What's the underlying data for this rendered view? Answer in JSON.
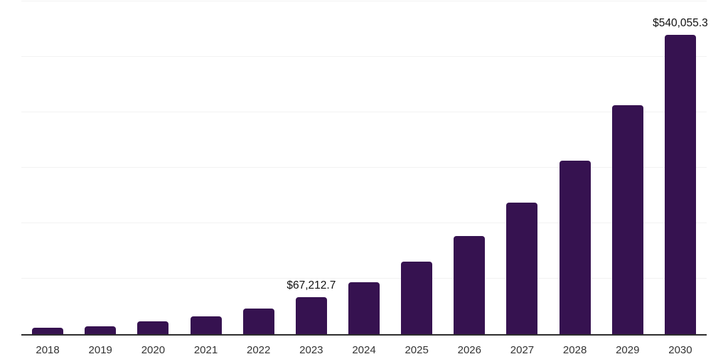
{
  "chart_data": {
    "type": "bar",
    "title": "",
    "xlabel": "",
    "ylabel": "",
    "categories": [
      "2018",
      "2019",
      "2020",
      "2021",
      "2022",
      "2023",
      "2024",
      "2025",
      "2026",
      "2027",
      "2028",
      "2029",
      "2030"
    ],
    "values": [
      11200,
      14600,
      22700,
      32400,
      45800,
      67212.7,
      93200,
      131000,
      177200,
      237300,
      313300,
      413400,
      540055.3
    ],
    "value_labels": [
      "",
      "",
      "",
      "",
      "",
      "$67,212.7",
      "",
      "",
      "",
      "",
      "",
      "",
      "$540,055.3"
    ],
    "ylim": [
      0,
      600000
    ],
    "gridline_interval": 100000,
    "grid": true,
    "legend": false,
    "colors": {
      "bar": "#361250",
      "axis_line": "#2e2e2e",
      "gridline": "#f2f2f2",
      "tick_label": "#333333",
      "data_label": "#111111"
    }
  }
}
